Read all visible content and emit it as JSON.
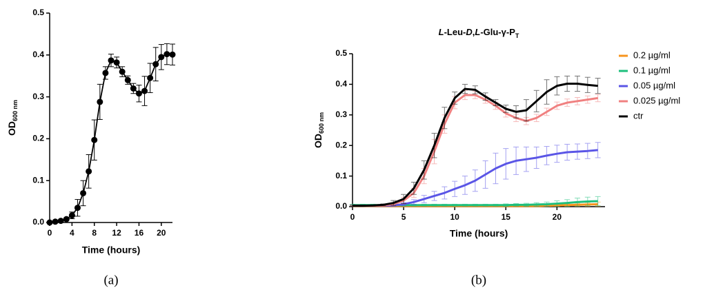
{
  "chart_data": [
    {
      "type": "line",
      "caption": "(a)",
      "xlabel": "Time (hours)",
      "ylabel": "OD",
      "ylabel_sub": "600 nm",
      "x": [
        0,
        1,
        2,
        3,
        4,
        5,
        6,
        7,
        8,
        9,
        10,
        11,
        12,
        13,
        14,
        15,
        16,
        17,
        18,
        19,
        20,
        21,
        22
      ],
      "series": [
        {
          "color": "#000000",
          "values": [
            0.0,
            0.002,
            0.004,
            0.008,
            0.017,
            0.035,
            0.07,
            0.122,
            0.197,
            0.288,
            0.357,
            0.387,
            0.382,
            0.36,
            0.34,
            0.32,
            0.308,
            0.314,
            0.345,
            0.378,
            0.395,
            0.402,
            0.401
          ],
          "errors": [
            0.002,
            0.002,
            0.002,
            0.003,
            0.008,
            0.02,
            0.03,
            0.04,
            0.048,
            0.042,
            0.015,
            0.015,
            0.013,
            0.012,
            0.01,
            0.012,
            0.02,
            0.035,
            0.035,
            0.04,
            0.03,
            0.025,
            0.025
          ]
        }
      ],
      "markers": true,
      "xlim": [
        0,
        22
      ],
      "ylim": [
        0,
        0.5
      ],
      "xticks": [
        0,
        4,
        8,
        12,
        16,
        20
      ],
      "yticks": [
        {
          "value": 0,
          "label": "0.0"
        },
        0.1,
        0.2,
        0.3,
        0.4,
        0.5
      ]
    },
    {
      "type": "line",
      "caption": "(b)",
      "title_parts": [
        "L",
        "-Leu-",
        "D",
        ",",
        "L",
        "-Glu-γ-P",
        "T"
      ],
      "xlabel": "Time (hours)",
      "ylabel": "OD",
      "ylabel_sub": "600 nm",
      "x": [
        0,
        1,
        2,
        3,
        4,
        5,
        6,
        7,
        8,
        9,
        10,
        11,
        12,
        13,
        14,
        15,
        16,
        17,
        18,
        19,
        20,
        21,
        22,
        23,
        24
      ],
      "series": [
        {
          "name": "0.2 µg/ml",
          "color": "#f7941d",
          "values": [
            0.002,
            0.002,
            0.002,
            0.002,
            0.002,
            0.002,
            0.002,
            0.002,
            0.002,
            0.002,
            0.002,
            0.002,
            0.002,
            0.002,
            0.002,
            0.002,
            0.002,
            0.002,
            0.002,
            0.003,
            0.004,
            0.005,
            0.006,
            0.007,
            0.008
          ],
          "errors": [
            0.001,
            0.001,
            0.001,
            0.001,
            0.001,
            0.001,
            0.001,
            0.001,
            0.001,
            0.001,
            0.001,
            0.001,
            0.001,
            0.001,
            0.001,
            0.001,
            0.001,
            0.001,
            0.002,
            0.002,
            0.003,
            0.004,
            0.005,
            0.006,
            0.007
          ]
        },
        {
          "name": "0.1 µg/ml",
          "color": "#1dbf7c",
          "values": [
            0.005,
            0.005,
            0.005,
            0.005,
            0.005,
            0.005,
            0.005,
            0.005,
            0.005,
            0.005,
            0.005,
            0.005,
            0.005,
            0.005,
            0.005,
            0.005,
            0.006,
            0.006,
            0.007,
            0.008,
            0.01,
            0.012,
            0.015,
            0.017,
            0.018
          ],
          "errors": [
            0.003,
            0.003,
            0.003,
            0.003,
            0.003,
            0.003,
            0.003,
            0.003,
            0.003,
            0.003,
            0.003,
            0.003,
            0.003,
            0.003,
            0.003,
            0.004,
            0.004,
            0.005,
            0.006,
            0.007,
            0.009,
            0.011,
            0.013,
            0.014,
            0.015
          ]
        },
        {
          "name": "0.05 µg/ml",
          "color": "#5a55e6",
          "values": [
            0.003,
            0.003,
            0.003,
            0.003,
            0.004,
            0.008,
            0.015,
            0.025,
            0.035,
            0.045,
            0.058,
            0.07,
            0.085,
            0.105,
            0.125,
            0.14,
            0.15,
            0.155,
            0.16,
            0.167,
            0.173,
            0.178,
            0.18,
            0.182,
            0.185
          ],
          "errors": [
            0.002,
            0.002,
            0.002,
            0.002,
            0.003,
            0.005,
            0.008,
            0.012,
            0.015,
            0.02,
            0.025,
            0.03,
            0.035,
            0.045,
            0.05,
            0.05,
            0.045,
            0.04,
            0.035,
            0.03,
            0.028,
            0.026,
            0.025,
            0.025,
            0.025
          ]
        },
        {
          "name": "0.025 µg/ml",
          "color": "#f08080",
          "values": [
            0.003,
            0.003,
            0.003,
            0.004,
            0.008,
            0.02,
            0.045,
            0.1,
            0.18,
            0.27,
            0.34,
            0.365,
            0.365,
            0.35,
            0.33,
            0.305,
            0.29,
            0.28,
            0.29,
            0.31,
            0.33,
            0.34,
            0.345,
            0.35,
            0.355
          ],
          "errors": [
            0.002,
            0.002,
            0.002,
            0.003,
            0.005,
            0.01,
            0.015,
            0.025,
            0.04,
            0.03,
            0.02,
            0.015,
            0.012,
            0.012,
            0.012,
            0.012,
            0.012,
            0.012,
            0.012,
            0.012,
            0.012,
            0.012,
            0.012,
            0.012,
            0.012
          ]
        },
        {
          "name": "ctr",
          "color": "#000000",
          "values": [
            0.003,
            0.003,
            0.004,
            0.006,
            0.012,
            0.025,
            0.06,
            0.12,
            0.2,
            0.29,
            0.355,
            0.385,
            0.382,
            0.36,
            0.34,
            0.32,
            0.31,
            0.315,
            0.345,
            0.375,
            0.395,
            0.402,
            0.402,
            0.398,
            0.395
          ],
          "errors": [
            0.002,
            0.002,
            0.002,
            0.003,
            0.008,
            0.015,
            0.02,
            0.03,
            0.04,
            0.035,
            0.02,
            0.015,
            0.013,
            0.012,
            0.01,
            0.012,
            0.02,
            0.035,
            0.035,
            0.04,
            0.03,
            0.025,
            0.025,
            0.025,
            0.025
          ]
        }
      ],
      "markers": false,
      "legend": "right",
      "xlim": [
        0,
        24.7
      ],
      "ylim": [
        0,
        0.5
      ],
      "xticks": [
        0,
        5,
        10,
        15,
        20
      ],
      "yticks": [
        {
          "value": 0,
          "label": "0.0"
        },
        0.1,
        0.2,
        0.3,
        0.4,
        0.5
      ]
    }
  ]
}
